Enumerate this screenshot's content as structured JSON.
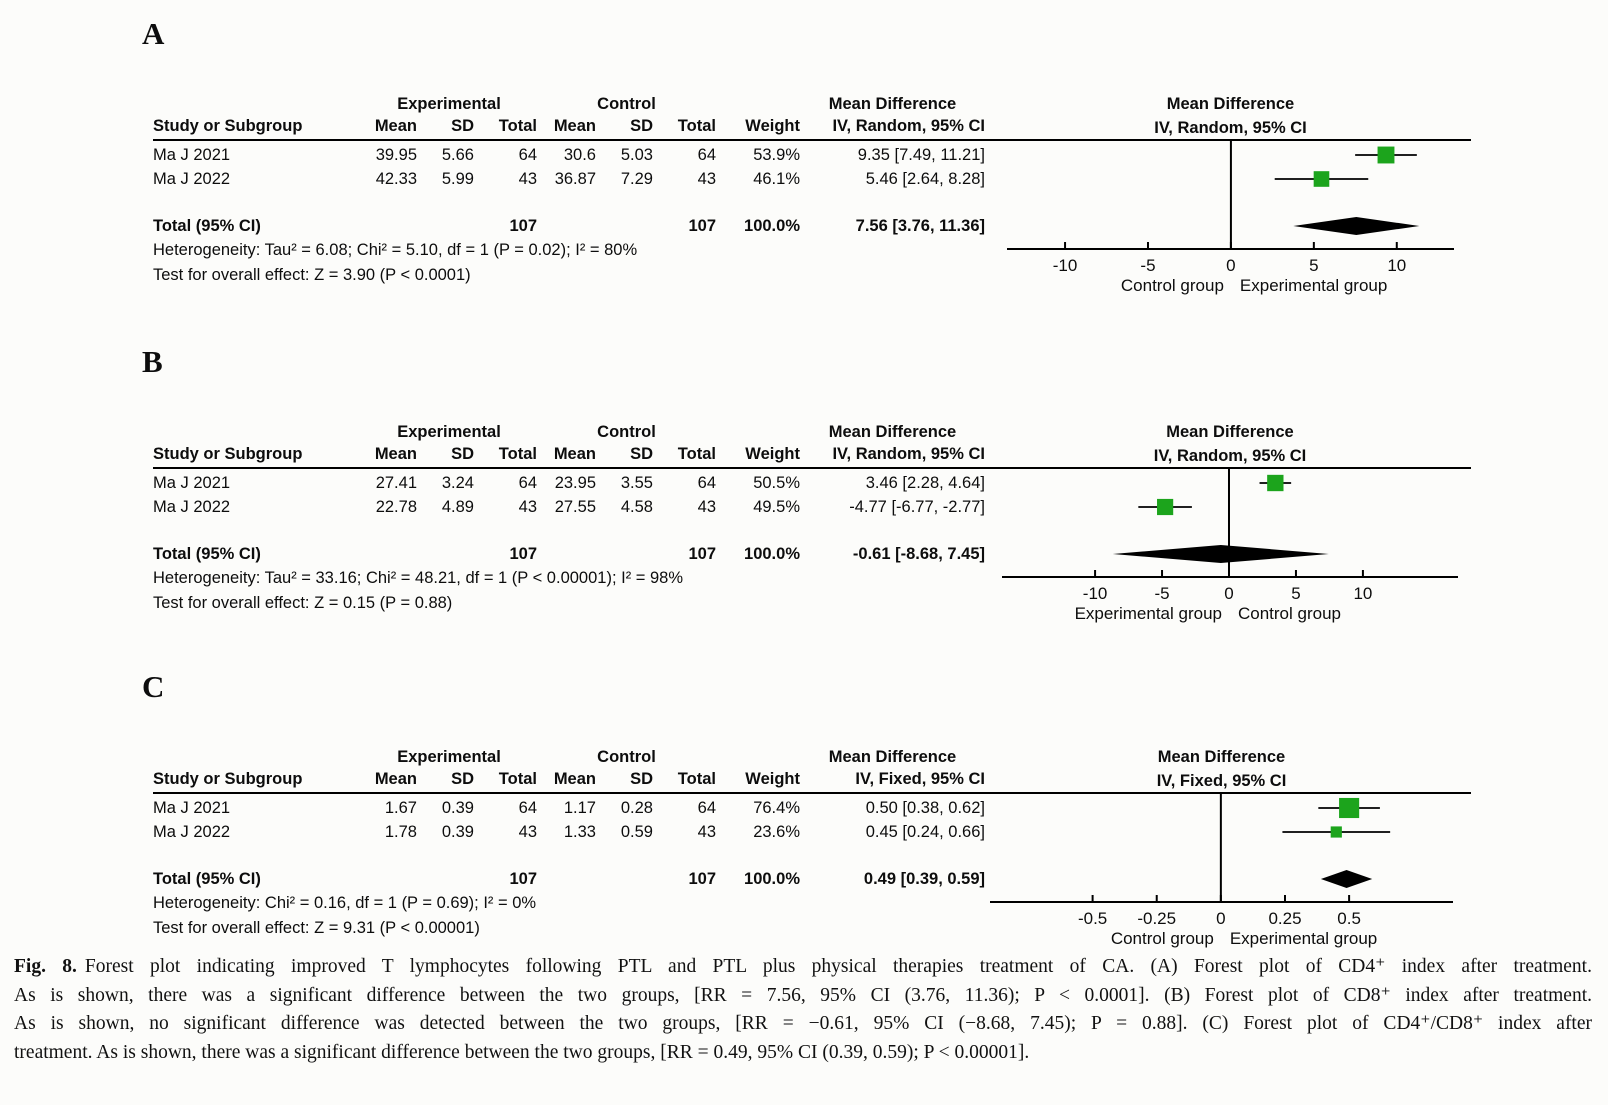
{
  "figure": {
    "panels": [
      {
        "letter": "A",
        "group_headers": {
          "experimental": "Experimental",
          "control": "Control",
          "effect": "Mean Difference"
        },
        "col_headers": {
          "study": "Study or Subgroup",
          "mean": "Mean",
          "sd": "SD",
          "total": "Total",
          "mean2": "Mean",
          "sd2": "SD",
          "total2": "Total",
          "weight": "Weight",
          "ci": "IV, Random, 95% CI"
        },
        "rows": [
          {
            "study": "Ma J 2021",
            "exp_mean": "39.95",
            "exp_sd": "5.66",
            "exp_total": "64",
            "ctrl_mean": "30.6",
            "ctrl_sd": "5.03",
            "ctrl_total": "64",
            "weight": "53.9%",
            "ci": "9.35 [7.49, 11.21]"
          },
          {
            "study": "Ma J 2022",
            "exp_mean": "42.33",
            "exp_sd": "5.99",
            "exp_total": "43",
            "ctrl_mean": "36.87",
            "ctrl_sd": "7.29",
            "ctrl_total": "43",
            "weight": "46.1%",
            "ci": "5.46 [2.64, 8.28]"
          }
        ],
        "total_row": {
          "label": "Total (95% CI)",
          "exp_total": "107",
          "ctrl_total": "107",
          "weight": "100.0%",
          "ci": "7.56 [3.76, 11.36]"
        },
        "heterogeneity": "Heterogeneity: Tau² = 6.08; Chi² = 5.10, df = 1 (P = 0.02); I² = 80%",
        "overall_effect": "Test for overall effect: Z = 3.90 (P < 0.0001)"
      },
      {
        "letter": "B",
        "group_headers": {
          "experimental": "Experimental",
          "control": "Control",
          "effect": "Mean Difference"
        },
        "col_headers": {
          "study": "Study or Subgroup",
          "mean": "Mean",
          "sd": "SD",
          "total": "Total",
          "mean2": "Mean",
          "sd2": "SD",
          "total2": "Total",
          "weight": "Weight",
          "ci": "IV, Random, 95% CI"
        },
        "rows": [
          {
            "study": "Ma J 2021",
            "exp_mean": "27.41",
            "exp_sd": "3.24",
            "exp_total": "64",
            "ctrl_mean": "23.95",
            "ctrl_sd": "3.55",
            "ctrl_total": "64",
            "weight": "50.5%",
            "ci": "3.46 [2.28, 4.64]"
          },
          {
            "study": "Ma J 2022",
            "exp_mean": "22.78",
            "exp_sd": "4.89",
            "exp_total": "43",
            "ctrl_mean": "27.55",
            "ctrl_sd": "4.58",
            "ctrl_total": "43",
            "weight": "49.5%",
            "ci": "-4.77 [-6.77, -2.77]"
          }
        ],
        "total_row": {
          "label": "Total (95% CI)",
          "exp_total": "107",
          "ctrl_total": "107",
          "weight": "100.0%",
          "ci": "-0.61 [-8.68, 7.45]"
        },
        "heterogeneity": "Heterogeneity: Tau² = 33.16; Chi² = 48.21, df = 1 (P < 0.00001); I² = 98%",
        "overall_effect": "Test for overall effect: Z = 0.15 (P = 0.88)"
      },
      {
        "letter": "C",
        "group_headers": {
          "experimental": "Experimental",
          "control": "Control",
          "effect": "Mean Difference"
        },
        "col_headers": {
          "study": "Study or Subgroup",
          "mean": "Mean",
          "sd": "SD",
          "total": "Total",
          "mean2": "Mean",
          "sd2": "SD",
          "total2": "Total",
          "weight": "Weight",
          "ci": "IV, Fixed, 95% CI"
        },
        "rows": [
          {
            "study": "Ma J 2021",
            "exp_mean": "1.67",
            "exp_sd": "0.39",
            "exp_total": "64",
            "ctrl_mean": "1.17",
            "ctrl_sd": "0.28",
            "ctrl_total": "64",
            "weight": "76.4%",
            "ci": "0.50 [0.38, 0.62]"
          },
          {
            "study": "Ma J 2022",
            "exp_mean": "1.78",
            "exp_sd": "0.39",
            "exp_total": "43",
            "ctrl_mean": "1.33",
            "ctrl_sd": "0.59",
            "ctrl_total": "43",
            "weight": "23.6%",
            "ci": "0.45 [0.24, 0.66]"
          }
        ],
        "total_row": {
          "label": "Total (95% CI)",
          "exp_total": "107",
          "ctrl_total": "107",
          "weight": "100.0%",
          "ci": "0.49 [0.39, 0.59]"
        },
        "heterogeneity": "Heterogeneity: Chi² = 0.16, df = 1 (P = 0.69); I² = 0%",
        "overall_effect": "Test for overall effect: Z = 9.31 (P < 0.00001)"
      }
    ],
    "caption": {
      "label": "Fig. 8.",
      "lines": [
        "Forest plot indicating improved T lymphocytes following PTL and PTL plus physical therapies treatment of CA. (A) Forest plot of CD4⁺ index after treatment.",
        "As is shown, there was a significant difference between the two groups, [RR = 7.56, 95% CI (3.76, 11.36); P < 0.0001]. (B) Forest plot of CD8⁺ index after treatment.",
        "As is shown, no significant difference was detected between the two groups, [RR = −0.61, 95% CI (−8.68, 7.45); P = 0.88]. (C) Forest plot of CD4⁺/CD8⁺ index after",
        "treatment. As is shown, there was a significant difference between the two groups, [RR = 0.49, 95% CI (0.39, 0.59); P < 0.00001]."
      ]
    }
  },
  "chart_data": [
    {
      "type": "forest",
      "panel": "A",
      "outcome": "CD4⁺ index after treatment",
      "title_lines": [
        "Mean Difference",
        "IV, Random, 95% CI"
      ],
      "studies": [
        {
          "name": "Ma J 2021",
          "md": 9.35,
          "ci": [
            7.49,
            11.21
          ],
          "weight_pct": 53.9
        },
        {
          "name": "Ma J 2022",
          "md": 5.46,
          "ci": [
            2.64,
            8.28
          ],
          "weight_pct": 46.1
        }
      ],
      "total": {
        "md": 7.56,
        "ci": [
          3.76,
          11.36
        ]
      },
      "heterogeneity": "Tau² = 6.08; Chi² = 5.10, df = 1 (P = 0.02); I² = 80%",
      "overall_effect": "Z = 3.90 (P < 0.0001)",
      "x_ticks": [
        -10,
        -5,
        0,
        5,
        10
      ],
      "x_range": [
        -13.5,
        13.45
      ],
      "left_label": "Control group",
      "right_label": "Experimental group",
      "marker_color": "#1ca41c"
    },
    {
      "type": "forest",
      "panel": "B",
      "outcome": "CD8⁺ index after treatment",
      "title_lines": [
        "Mean Difference",
        "IV, Random, 95% CI"
      ],
      "studies": [
        {
          "name": "Ma J 2021",
          "md": 3.46,
          "ci": [
            2.28,
            4.64
          ],
          "weight_pct": 50.5
        },
        {
          "name": "Ma J 2022",
          "md": -4.77,
          "ci": [
            -6.77,
            -2.77
          ],
          "weight_pct": 49.5
        }
      ],
      "total": {
        "md": -0.61,
        "ci": [
          -8.68,
          7.45
        ]
      },
      "heterogeneity": "Tau² = 33.16; Chi² = 48.21, df = 1 (P < 0.00001); I² = 98%",
      "overall_effect": "Z = 0.15 (P = 0.88)",
      "x_ticks": [
        -10,
        -5,
        0,
        5,
        10
      ],
      "x_range": [
        -16.95,
        17.1
      ],
      "left_label": "Experimental group",
      "right_label": "Control group",
      "marker_color": "#1ca41c"
    },
    {
      "type": "forest",
      "panel": "C",
      "outcome": "CD4⁺/CD8⁺ index after treatment",
      "title_lines": [
        "Mean Difference",
        "IV, Fixed, 95% CI"
      ],
      "studies": [
        {
          "name": "Ma J 2021",
          "md": 0.5,
          "ci": [
            0.38,
            0.62
          ],
          "weight_pct": 76.4
        },
        {
          "name": "Ma J 2022",
          "md": 0.45,
          "ci": [
            0.24,
            0.66
          ],
          "weight_pct": 23.6
        }
      ],
      "total": {
        "md": 0.49,
        "ci": [
          0.39,
          0.59
        ]
      },
      "heterogeneity": "Chi² = 0.16, df = 1 (P = 0.69); I² = 0%",
      "overall_effect": "Z = 9.31 (P < 0.00001)",
      "x_ticks": [
        -0.5,
        -0.25,
        0,
        0.25,
        0.5
      ],
      "x_range": [
        -0.9,
        0.905
      ],
      "left_label": "Control group",
      "right_label": "Experimental group",
      "marker_color": "#1ca41c"
    }
  ]
}
